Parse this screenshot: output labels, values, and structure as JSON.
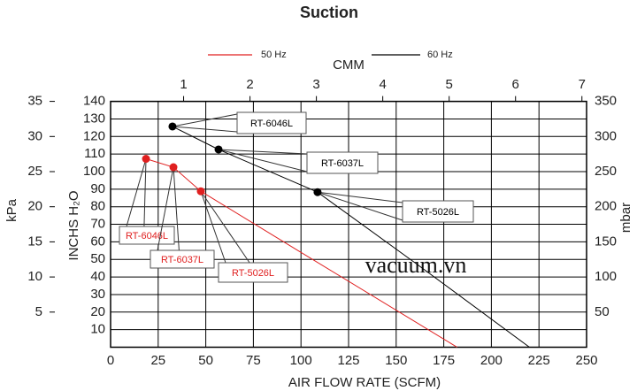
{
  "chart_data": {
    "type": "line",
    "title": "Suction",
    "x_label": "AIR FLOW RATE (SCFM)",
    "x2_label": "CMM",
    "y_label": "INCHS H₂O",
    "y2_label": "kPa",
    "y3_label": "mbar",
    "watermark": "vacuum.vn",
    "xlim": [
      0,
      250
    ],
    "xticks": [
      0,
      25,
      50,
      75,
      100,
      125,
      150,
      175,
      200,
      225,
      250
    ],
    "x2lim": [
      -0.1,
      7.07
    ],
    "x2ticks": [
      1,
      2,
      3,
      4,
      5,
      6,
      7
    ],
    "ylim": [
      0,
      140
    ],
    "yticks": [
      10,
      20,
      30,
      40,
      50,
      60,
      70,
      80,
      90,
      100,
      110,
      120,
      130,
      140
    ],
    "y2lim": [
      0,
      35
    ],
    "y2ticks": [
      5,
      10,
      15,
      20,
      25,
      30,
      35
    ],
    "y3lim": [
      0,
      350
    ],
    "y3ticks": [
      50,
      100,
      150,
      200,
      250,
      300,
      350
    ],
    "grid": true,
    "series": [
      {
        "name": "50 Hz",
        "color": "#e02020",
        "x": [
          18.6,
          33,
          47.4,
          100,
          182
        ],
        "values": [
          107.3,
          102.5,
          88.8,
          54,
          0
        ],
        "point_labels": [
          "RT-6046L",
          "RT-6037L",
          "RT-5026L",
          null,
          null
        ]
      },
      {
        "name": "60 Hz",
        "color": "#000000",
        "x": [
          32.5,
          56.7,
          108.7,
          160,
          220
        ],
        "values": [
          125.7,
          112.6,
          88.3,
          48,
          0
        ],
        "point_labels": [
          "RT-6046L",
          "RT-6037L",
          "RT-5026L",
          null,
          null
        ]
      }
    ]
  }
}
